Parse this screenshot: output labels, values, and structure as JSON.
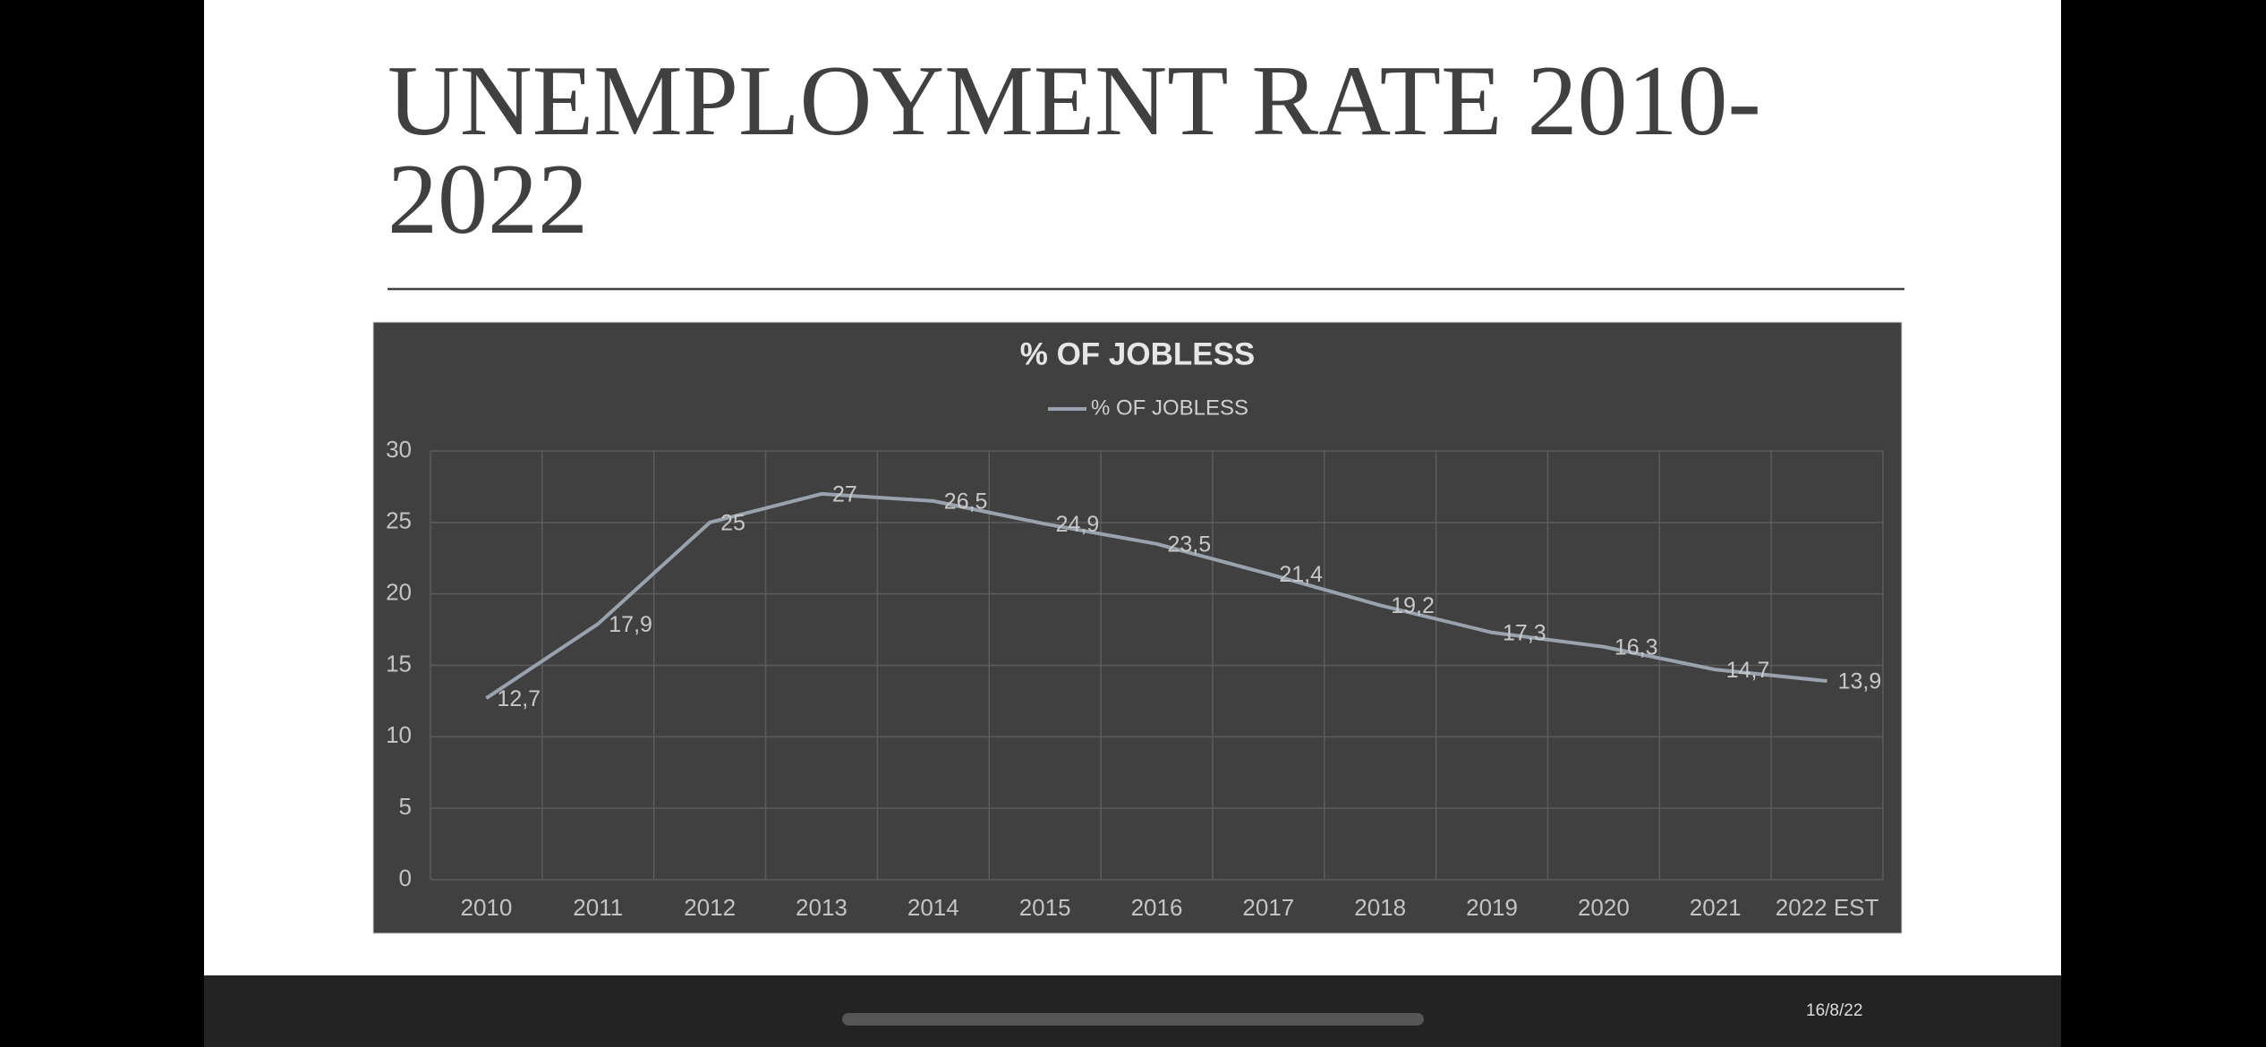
{
  "slide": {
    "title": "UNEMPLOYMENT RATE 2010-2022",
    "date": "16/8/22"
  },
  "chart_data": {
    "type": "line",
    "title": "% OF JOBLESS",
    "categories": [
      "2010",
      "2011",
      "2012",
      "2013",
      "2014",
      "2015",
      "2016",
      "2017",
      "2018",
      "2019",
      "2020",
      "2021",
      "2022 EST"
    ],
    "series": [
      {
        "name": "% OF JOBLESS",
        "color": "#9aa3ad",
        "values": [
          12.7,
          17.9,
          25,
          27,
          26.5,
          24.9,
          23.5,
          21.4,
          19.2,
          17.3,
          16.3,
          14.7,
          13.9
        ],
        "value_labels": [
          "12,7",
          "17,9",
          "25",
          "27",
          "26,5",
          "24,9",
          "23,5",
          "21,4",
          "19,2",
          "17,3",
          "16,3",
          "14,7",
          "13,9"
        ]
      }
    ],
    "ylim": [
      0,
      30
    ],
    "yticks": [
      0,
      5,
      10,
      15,
      20,
      25,
      30
    ],
    "grid": true,
    "legend": "top"
  }
}
